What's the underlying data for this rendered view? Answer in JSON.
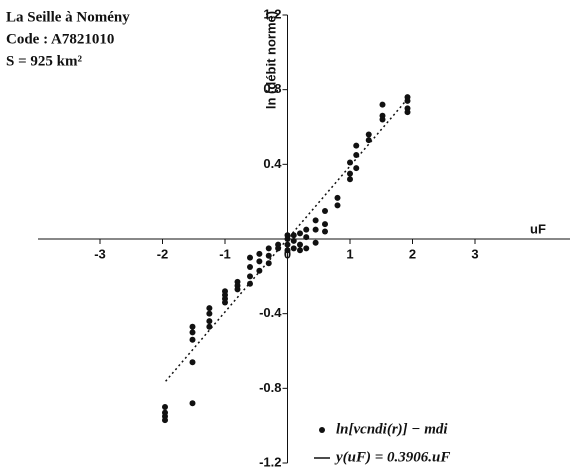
{
  "chart_data": {
    "type": "scatter",
    "annotation": [
      "La Seille à Nomény",
      "Code : A7821010",
      "S = 925 km²"
    ],
    "x_label": "uF",
    "y_label": "ln (débit normé)",
    "xlim": [
      -3,
      3
    ],
    "ylim": [
      -1.2,
      1.2
    ],
    "xticks": [
      -3,
      -2,
      -1,
      0,
      1,
      2,
      3
    ],
    "yticks": [
      -1.2,
      -0.8,
      -0.4,
      0.4,
      0.8,
      1.2
    ],
    "legend": "lower right",
    "series": [
      {
        "name": "ln[vcndi(r)] − mdi",
        "color": "#111111",
        "x": [
          -1.96,
          -1.96,
          -1.96,
          -1.96,
          -1.52,
          -1.52,
          -1.52,
          -1.52,
          -1.52,
          -1.25,
          -1.25,
          -1.25,
          -1.25,
          -1.0,
          -1.0,
          -1.0,
          -1.0,
          -0.8,
          -0.8,
          -0.8,
          -0.6,
          -0.6,
          -0.6,
          -0.6,
          -0.45,
          -0.45,
          -0.45,
          -0.3,
          -0.3,
          -0.3,
          -0.15,
          -0.15,
          0,
          0,
          0,
          0,
          0.1,
          0.1,
          0.1,
          0.2,
          0.2,
          0.2,
          0.3,
          0.3,
          0.3,
          0.45,
          0.45,
          0.45,
          0.6,
          0.6,
          0.6,
          0.8,
          0.8,
          1.0,
          1.0,
          1.0,
          1.1,
          1.1,
          1.1,
          1.3,
          1.3,
          1.52,
          1.52,
          1.52,
          1.92,
          1.92,
          1.92,
          1.92
        ],
        "values": [
          -0.9,
          -0.93,
          -0.95,
          -0.97,
          -0.47,
          -0.5,
          -0.54,
          -0.66,
          -0.88,
          -0.37,
          -0.4,
          -0.44,
          -0.47,
          -0.28,
          -0.3,
          -0.32,
          -0.34,
          -0.23,
          -0.25,
          -0.27,
          -0.1,
          -0.15,
          -0.2,
          -0.24,
          -0.08,
          -0.12,
          -0.17,
          -0.05,
          -0.09,
          -0.13,
          -0.03,
          -0.05,
          0.02,
          0,
          -0.03,
          -0.06,
          0.02,
          -0.01,
          -0.05,
          0.03,
          -0.03,
          -0.06,
          0.05,
          0.01,
          -0.05,
          0.1,
          0.05,
          -0.02,
          0.15,
          0.08,
          0.04,
          0.22,
          0.18,
          0.41,
          0.35,
          0.32,
          0.5,
          0.45,
          0.38,
          0.56,
          0.53,
          0.72,
          0.66,
          0.64,
          0.76,
          0.74,
          0.7,
          0.68
        ]
      },
      {
        "name": "y(uF) = 0.3906.uF",
        "color": "#111111",
        "line": "dotted",
        "x": [
          -1.95,
          1.95
        ],
        "values": [
          -0.762,
          0.762
        ]
      }
    ]
  }
}
